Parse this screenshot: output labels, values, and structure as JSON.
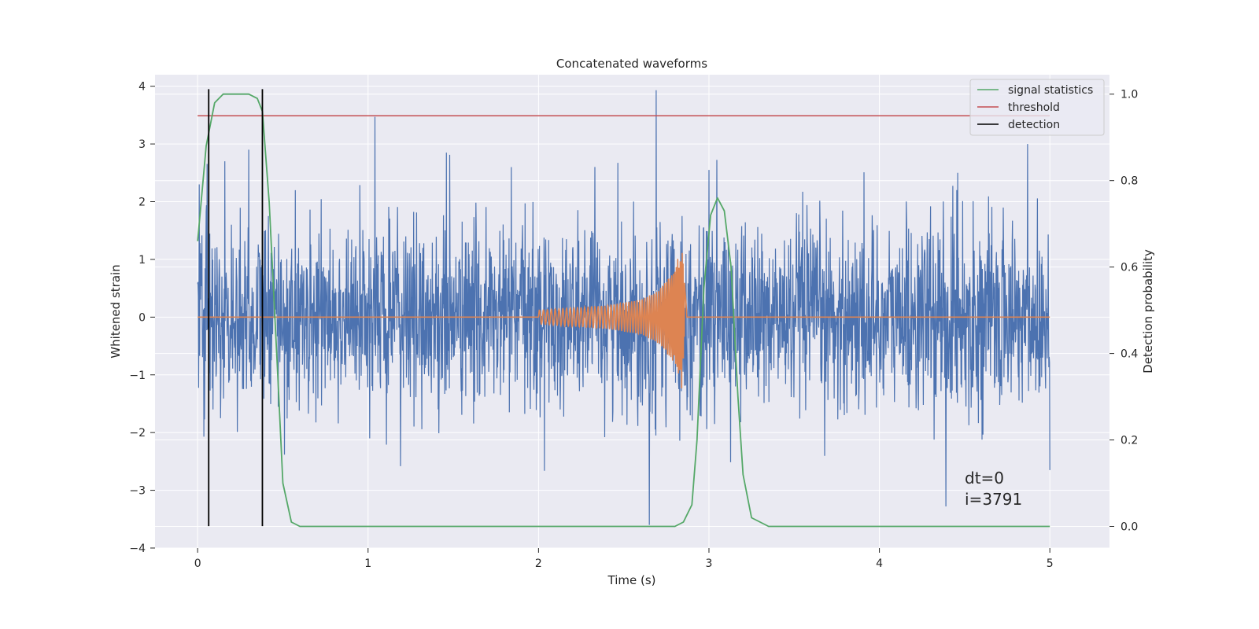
{
  "chart_data": {
    "type": "line",
    "title": "Concatenated waveforms",
    "xlabel": "Time (s)",
    "ylabel": "Whitened strain",
    "y2label": "Detection probability",
    "xlim": [
      -0.25,
      5.35
    ],
    "ylim": [
      -4.0,
      4.2
    ],
    "y2lim": [
      -0.05,
      1.045
    ],
    "xticks": [
      0,
      1,
      2,
      3,
      4,
      5
    ],
    "yticks": [
      -4,
      -3,
      -2,
      -1,
      0,
      1,
      2,
      3,
      4
    ],
    "y2ticks": [
      0.0,
      0.2,
      0.4,
      0.6,
      0.8,
      1.0
    ],
    "xtick_labels": [
      "0",
      "1",
      "2",
      "3",
      "4",
      "5"
    ],
    "ytick_labels": [
      "−4",
      "−3",
      "−2",
      "−1",
      "0",
      "1",
      "2",
      "3",
      "4"
    ],
    "y2tick_labels": [
      "0.0",
      "0.2",
      "0.4",
      "0.6",
      "0.8",
      "1.0"
    ],
    "grid": true,
    "legend_position": "top-right",
    "colors": {
      "noise": "#4c72b0",
      "waveform": "#dd8452",
      "signal_statistics": "#55a868",
      "threshold": "#c44e52",
      "detection": "#000000",
      "background": "#eaeaf2",
      "grid": "#ffffff"
    },
    "series": [
      {
        "name": "",
        "axis": "left",
        "kind": "noise",
        "x_range": [
          0,
          5
        ],
        "amplitude_sigma": 0.8,
        "notable_peaks": [
          [
            0.01,
            2.3
          ],
          [
            0.16,
            2.7
          ],
          [
            0.3,
            2.9
          ],
          [
            1.04,
            3.47
          ],
          [
            1.46,
            2.85
          ],
          [
            1.84,
            2.6
          ],
          [
            2.65,
            -3.6
          ],
          [
            2.69,
            3.93
          ],
          [
            3.0,
            2.55
          ],
          [
            4.39,
            -3.28
          ],
          [
            4.46,
            2.5
          ],
          [
            4.87,
            3.0
          ],
          [
            5.0,
            -2.65
          ]
        ]
      },
      {
        "name": "",
        "axis": "left",
        "kind": "chirp",
        "x": [
          0,
          2.0,
          2.2,
          2.4,
          2.6,
          2.7,
          2.8,
          2.84,
          2.87,
          5.0
        ],
        "envelope": [
          0,
          0.12,
          0.16,
          0.2,
          0.3,
          0.45,
          0.8,
          1.3,
          0.05,
          0
        ]
      },
      {
        "name": "signal statistics",
        "axis": "right",
        "x": [
          0,
          0.05,
          0.1,
          0.15,
          0.2,
          0.25,
          0.3,
          0.35,
          0.38,
          0.42,
          0.47,
          0.5,
          0.55,
          0.6,
          1.0,
          2.0,
          2.5,
          2.8,
          2.85,
          2.9,
          2.93,
          2.97,
          3.01,
          3.05,
          3.09,
          3.13,
          3.17,
          3.2,
          3.25,
          3.35,
          4.0,
          5.0
        ],
        "values": [
          0.66,
          0.88,
          0.98,
          1.0,
          1.0,
          1.0,
          1.0,
          0.99,
          0.96,
          0.75,
          0.35,
          0.1,
          0.01,
          0.0,
          0.0,
          0.0,
          0.0,
          0.0,
          0.01,
          0.05,
          0.2,
          0.55,
          0.72,
          0.76,
          0.73,
          0.6,
          0.3,
          0.12,
          0.02,
          0.0,
          0.0,
          0.0
        ]
      },
      {
        "name": "threshold",
        "axis": "right",
        "x": [
          0,
          5
        ],
        "values": [
          0.95,
          0.95
        ]
      },
      {
        "name": "detection",
        "axis": "left",
        "x_values": [
          0.065,
          0.38
        ],
        "y_range": [
          -3.62,
          3.95
        ]
      }
    ],
    "annotations": [
      "dt=0",
      "i=3791"
    ]
  }
}
